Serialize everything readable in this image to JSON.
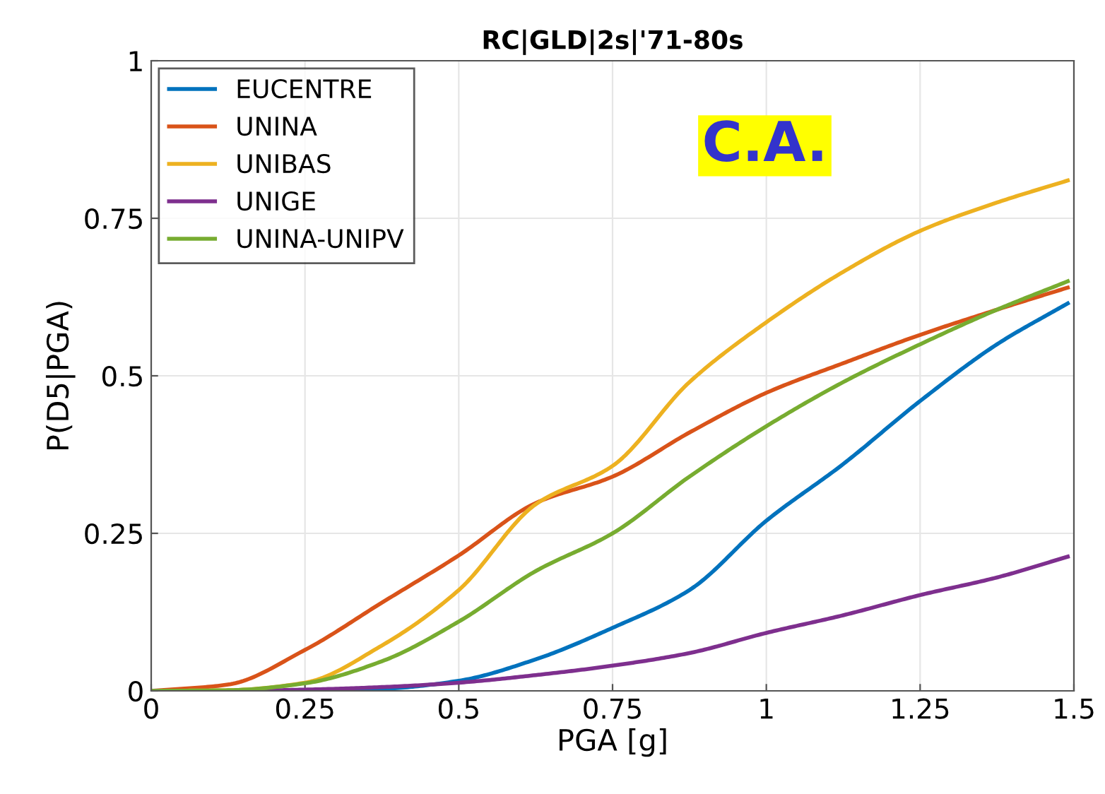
{
  "chart_data": {
    "type": "line",
    "title": "RC|GLD|2s|'71-80s",
    "xlabel": "PGA [g]",
    "ylabel": "P(D5|PGA)",
    "annotations": [
      "C.A."
    ],
    "x": [
      0,
      0.125,
      0.25,
      0.375,
      0.5,
      0.625,
      0.75,
      0.875,
      1,
      1.125,
      1.25,
      1.375,
      1.49
    ],
    "series": [
      {
        "name": "EUCENTRE",
        "color": "#0072bd",
        "values": [
          null,
          null,
          0,
          0.003,
          0.016,
          0.05,
          0.1,
          0.16,
          0.27,
          0.36,
          0.46,
          0.55,
          0.615
        ]
      },
      {
        "name": "UNINA",
        "color": "#d95319",
        "values": [
          0,
          0.01,
          0.065,
          0.14,
          0.215,
          0.298,
          0.34,
          0.41,
          0.473,
          0.52,
          0.565,
          0.605,
          0.64
        ]
      },
      {
        "name": "UNIBAS",
        "color": "#edb120",
        "values": [
          0,
          0.001,
          0.013,
          0.072,
          0.16,
          0.296,
          0.357,
          0.49,
          0.585,
          0.665,
          0.73,
          0.775,
          0.81
        ]
      },
      {
        "name": "UNIGE",
        "color": "#7e2f8e",
        "values": [
          0,
          0,
          0.002,
          0.006,
          0.013,
          0.025,
          0.04,
          0.06,
          0.092,
          0.12,
          0.152,
          0.18,
          0.213
        ]
      },
      {
        "name": "UNINA-UNIPV",
        "color": "#77ac30",
        "values": [
          0,
          0.001,
          0.012,
          0.047,
          0.11,
          0.19,
          0.25,
          0.34,
          0.42,
          0.49,
          0.55,
          0.605,
          0.65
        ]
      }
    ],
    "xlim": [
      0,
      1.5
    ],
    "ylim": [
      0,
      1
    ],
    "xticks": [
      0,
      0.25,
      0.5,
      0.75,
      1,
      1.25,
      1.5
    ],
    "yticks": [
      0,
      0.25,
      0.5,
      0.75,
      1
    ],
    "grid": true,
    "legend": "top left",
    "marker": "none",
    "line_style": "solid"
  }
}
